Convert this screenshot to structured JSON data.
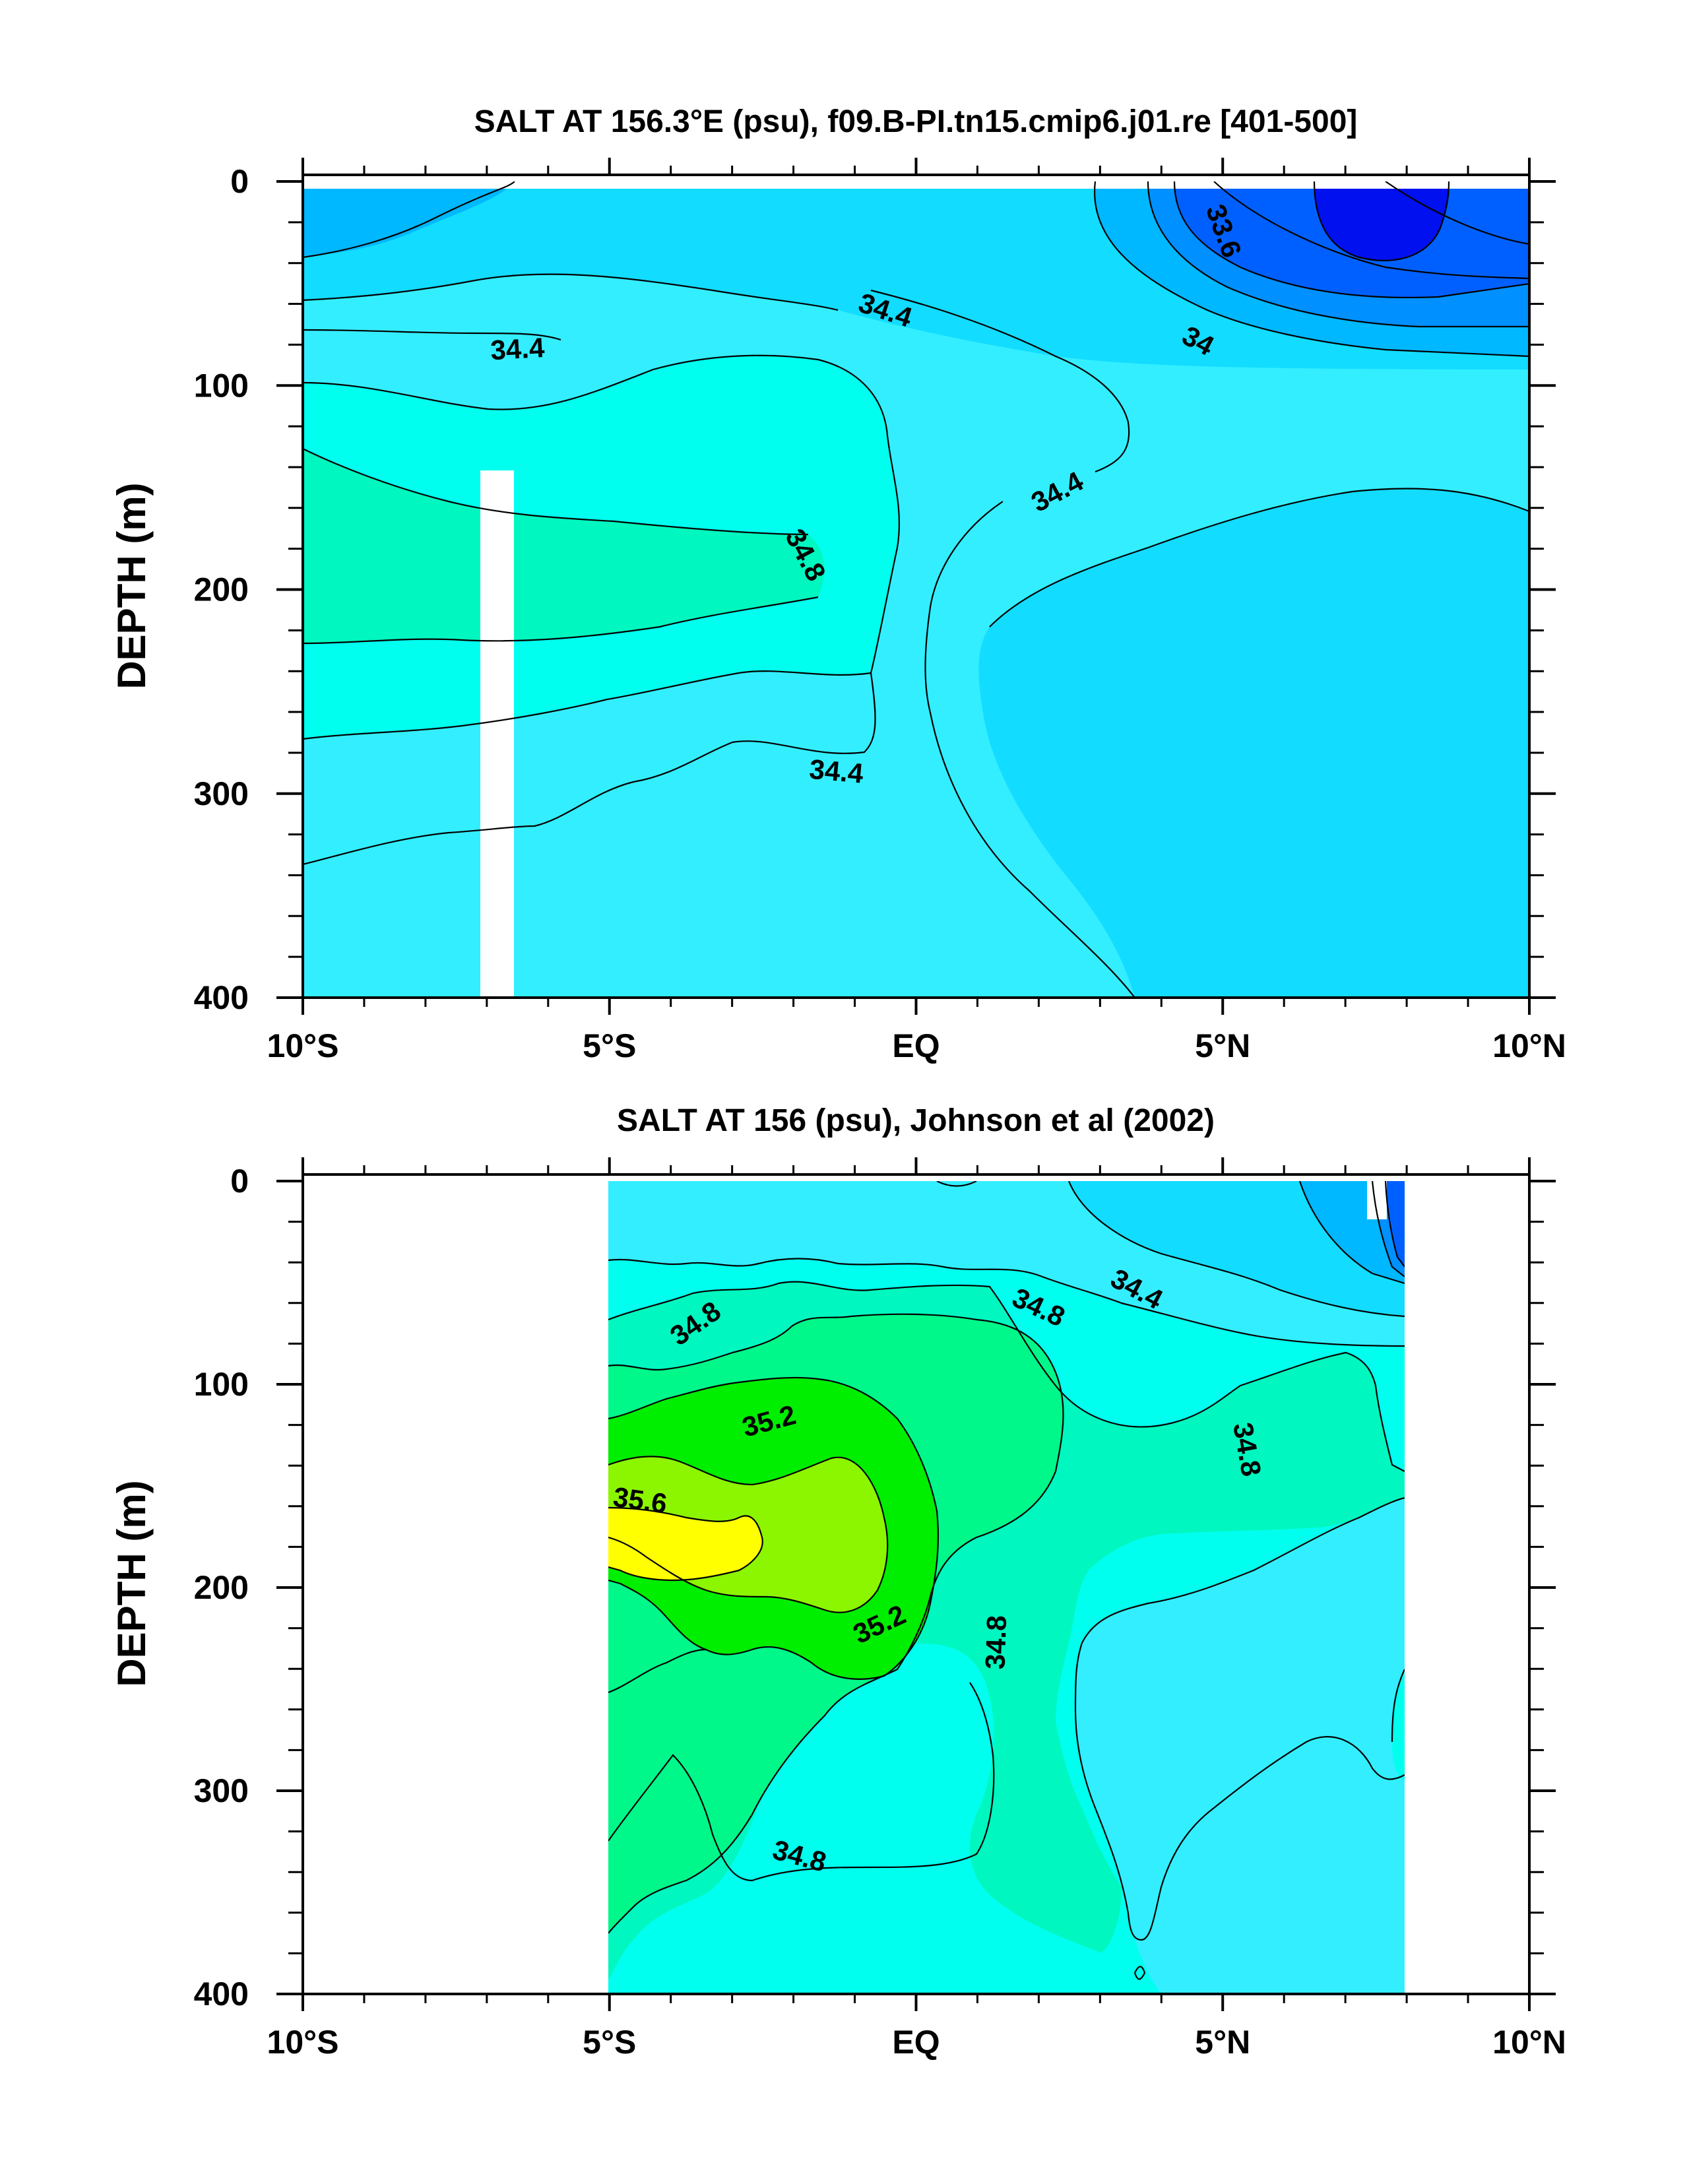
{
  "chart_data": [
    {
      "type": "contour",
      "title": "SALT AT 156.3°E (psu), f09.B-PI.tn15.cmip6.j01.re [401-500]",
      "xlabel": "",
      "ylabel": "DEPTH (m)",
      "xlim": [
        -10,
        10
      ],
      "ylim": [
        400,
        0
      ],
      "x_ticks": [
        {
          "value": -10,
          "label": "10°S"
        },
        {
          "value": -5,
          "label": "5°S"
        },
        {
          "value": 0,
          "label": "EQ"
        },
        {
          "value": 5,
          "label": "5°N"
        },
        {
          "value": 10,
          "label": "10°N"
        }
      ],
      "y_ticks": [
        {
          "value": 0,
          "label": "0"
        },
        {
          "value": 100,
          "label": "100"
        },
        {
          "value": 200,
          "label": "200"
        },
        {
          "value": 300,
          "label": "300"
        },
        {
          "value": 400,
          "label": "400"
        }
      ],
      "contour_labels": [
        {
          "text": "34.4",
          "x": -6.5,
          "y": 82,
          "rot": -3
        },
        {
          "text": "34.4",
          "x": -0.5,
          "y": 63,
          "rot": 18
        },
        {
          "text": "34",
          "x": 4.6,
          "y": 78,
          "rot": 28
        },
        {
          "text": "33.6",
          "x": 0.1,
          "y": 0,
          "rot": 70,
          "attach": "top-right"
        },
        {
          "text": "34.4",
          "x": 2.3,
          "y": 152,
          "rot": -28
        },
        {
          "text": "34.8",
          "x": -1.8,
          "y": 183,
          "rot": 62
        },
        {
          "text": "34.4",
          "x": -1.3,
          "y": 289,
          "rot": 5
        }
      ]
    },
    {
      "type": "contour",
      "title": "SALT AT 156 (psu), Johnson et al (2002)",
      "xlabel": "",
      "ylabel": "DEPTH (m)",
      "xlim": [
        -10,
        10
      ],
      "ylim": [
        400,
        0
      ],
      "x_ticks": [
        {
          "value": -10,
          "label": "10°S"
        },
        {
          "value": -5,
          "label": "5°S"
        },
        {
          "value": 0,
          "label": "EQ"
        },
        {
          "value": 5,
          "label": "5°N"
        },
        {
          "value": 10,
          "label": "10°N"
        }
      ],
      "y_ticks": [
        {
          "value": 0,
          "label": "0"
        },
        {
          "value": 100,
          "label": "100"
        },
        {
          "value": 200,
          "label": "200"
        },
        {
          "value": 300,
          "label": "300"
        },
        {
          "value": 400,
          "label": "400"
        }
      ],
      "data_extent_x": [
        -5,
        8
      ],
      "contour_labels": [
        {
          "text": "34.8",
          "x": -3.6,
          "y": 70,
          "rot": -35
        },
        {
          "text": "34.8",
          "x": 2.0,
          "y": 62,
          "rot": 25
        },
        {
          "text": "34.4",
          "x": 3.6,
          "y": 53,
          "rot": 28
        },
        {
          "text": "35.2",
          "x": -2.4,
          "y": 118,
          "rot": -15
        },
        {
          "text": "35.6",
          "x": -4.5,
          "y": 157,
          "rot": 8
        },
        {
          "text": "34.8",
          "x": 5.4,
          "y": 132,
          "rot": 80
        },
        {
          "text": "35.2",
          "x": -0.6,
          "y": 218,
          "rot": -25
        },
        {
          "text": "34.8",
          "x": 1.3,
          "y": 227,
          "rot": -88
        },
        {
          "text": "34.8",
          "x": -1.9,
          "y": 332,
          "rot": 15
        }
      ]
    }
  ]
}
